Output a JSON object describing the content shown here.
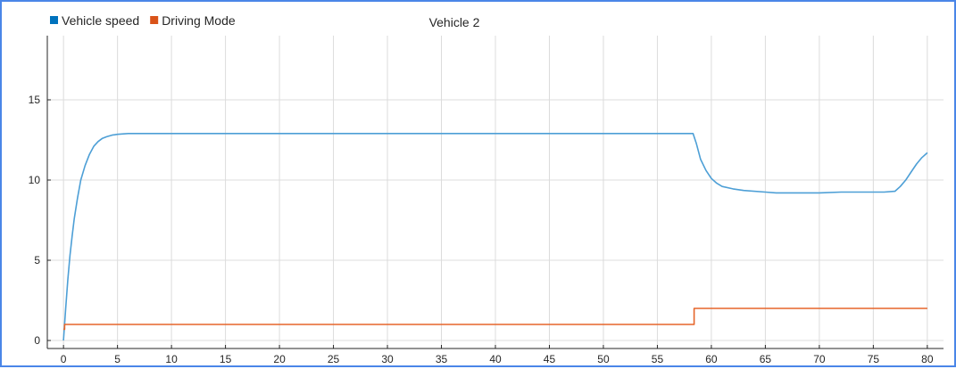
{
  "chart_data": {
    "type": "line",
    "title": "Vehicle 2",
    "xlim": [
      -1.5,
      81.5
    ],
    "ylim": [
      -0.5,
      19
    ],
    "x_ticks": [
      0,
      5,
      10,
      15,
      20,
      25,
      30,
      35,
      40,
      45,
      50,
      55,
      60,
      65,
      70,
      75,
      80
    ],
    "y_ticks": [
      0,
      5,
      10,
      15
    ],
    "grid": true,
    "legend_position": "top-left",
    "series": [
      {
        "name": "Vehicle speed",
        "color": "#0072bd",
        "line_color": "#4d9fd6",
        "x": [
          0,
          0.2,
          0.4,
          0.6,
          0.8,
          1.0,
          1.3,
          1.6,
          2.0,
          2.4,
          2.8,
          3.2,
          3.6,
          4.0,
          4.5,
          5.0,
          6.0,
          7.0,
          10,
          20,
          30,
          40,
          50,
          58.3,
          58.6,
          59.0,
          59.5,
          60.0,
          60.5,
          61.0,
          62.0,
          63.0,
          65.0,
          66.0,
          70.0,
          72.0,
          76.0,
          77.0,
          77.5,
          78.0,
          78.5,
          79.0,
          79.5,
          80.0
        ],
        "values": [
          0,
          2.0,
          3.8,
          5.3,
          6.5,
          7.6,
          8.9,
          10.0,
          10.9,
          11.6,
          12.1,
          12.4,
          12.6,
          12.7,
          12.8,
          12.85,
          12.9,
          12.9,
          12.9,
          12.9,
          12.9,
          12.9,
          12.9,
          12.9,
          12.3,
          11.3,
          10.6,
          10.1,
          9.8,
          9.6,
          9.45,
          9.35,
          9.25,
          9.2,
          9.2,
          9.25,
          9.25,
          9.3,
          9.6,
          10.0,
          10.5,
          11.0,
          11.4,
          11.7
        ]
      },
      {
        "name": "Driving Mode",
        "color": "#d95319",
        "line_color": "#e5652a",
        "x": [
          0,
          0.1,
          0.1,
          58.4,
          58.4,
          80
        ],
        "values": [
          0.7,
          0.7,
          1,
          1,
          2,
          2
        ]
      }
    ]
  }
}
